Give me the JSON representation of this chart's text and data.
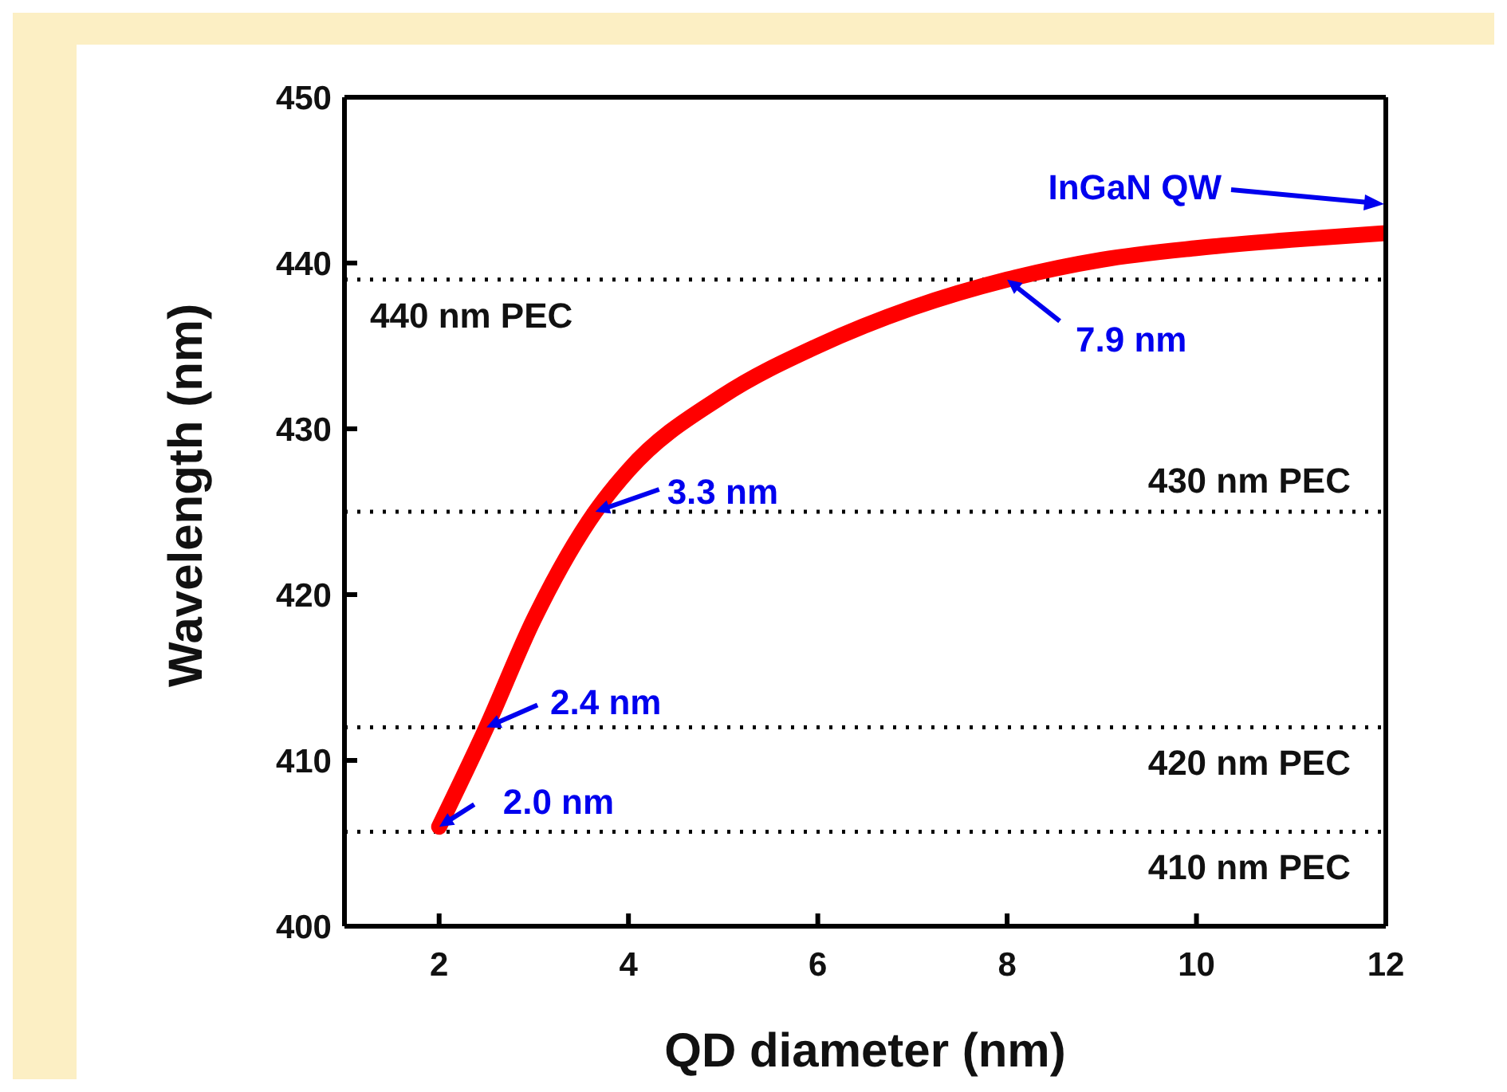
{
  "chart_data": {
    "type": "line",
    "xlabel": "QD diameter (nm)",
    "ylabel": "Wavelength (nm)",
    "x": [
      2,
      2.5,
      3,
      3.65,
      4,
      5,
      6,
      7,
      8,
      9,
      10,
      11,
      12
    ],
    "series": [
      {
        "color": "#ff0000",
        "values": [
          406,
          412,
          418.5,
          425,
          427.5,
          432,
          435,
          437.3,
          439,
          440.2,
          440.9,
          441.4,
          441.8
        ]
      }
    ],
    "xlim": [
      1,
      12
    ],
    "xticks": [
      2,
      4,
      6,
      8,
      10,
      12
    ],
    "ylim": [
      400,
      450
    ],
    "yticks": [
      400,
      410,
      420,
      430,
      440,
      450
    ],
    "ref_lines": [
      {
        "axis": "y",
        "value": 439,
        "label": "440 nm PEC",
        "color": "#000000",
        "line_style": "dotted"
      },
      {
        "axis": "y",
        "value": 425,
        "label": "430 nm PEC",
        "color": "#000000",
        "line_style": "dotted"
      },
      {
        "axis": "y",
        "value": 412,
        "label": "420 nm PEC",
        "color": "#000000",
        "line_style": "dotted"
      },
      {
        "axis": "y",
        "value": 405.7,
        "label": "410 nm PEC",
        "color": "#000000",
        "line_style": "dotted"
      }
    ],
    "annotations": [
      {
        "text": "2.0 nm",
        "x": 2,
        "y": 406
      },
      {
        "text": "2.4 nm",
        "x": 2.5,
        "y": 412
      },
      {
        "text": "3.3 nm",
        "x": 3.65,
        "y": 425
      },
      {
        "text": "7.9 nm",
        "x": 8,
        "y": 439
      },
      "InGaN QW"
    ],
    "marker": "none",
    "line_style": "solid"
  }
}
